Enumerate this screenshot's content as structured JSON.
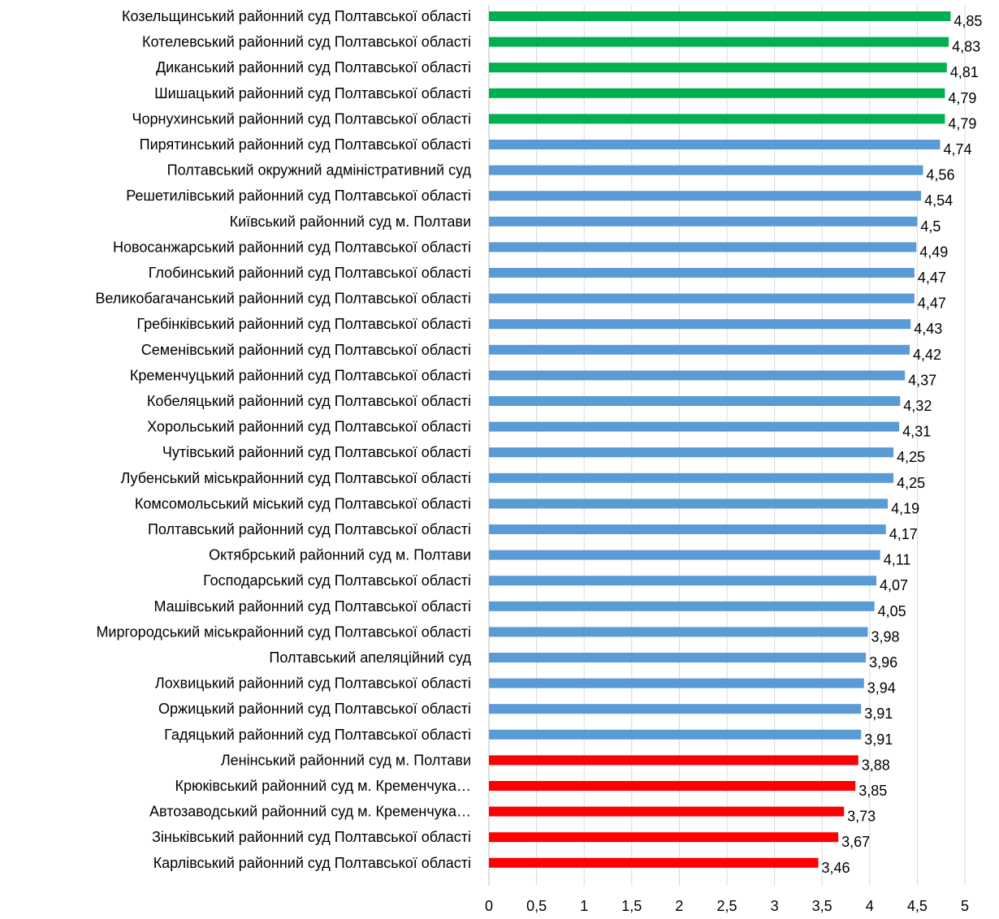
{
  "chart_data": {
    "type": "bar",
    "orientation": "horizontal",
    "categories": [
      "Козельщинський районний суд Полтавської області",
      "Котелевський районний суд Полтавської області",
      "Диканський районний суд Полтавської області",
      "Шишацький районний суд Полтавської області",
      "Чорнухинський районний суд Полтавської області",
      "Пирятинський районний суд Полтавської області",
      "Полтавський окружний адміністративний суд",
      "Решетилівський районний суд Полтавської області",
      "Київський районний суд м. Полтави",
      "Новосанжарський районний суд Полтавської області",
      "Глобинський районний суд Полтавської області",
      "Великобагачанський районний суд Полтавської області",
      "Гребінківський районний суд Полтавської області",
      "Семенівський районний суд Полтавської області",
      "Кременчуцький районний суд Полтавської області",
      "Кобеляцький районний суд Полтавської області",
      "Хорольський районний суд Полтавської області",
      "Чутівський районний суд Полтавської області",
      "Лубенський міськрайонний суд Полтавської області",
      "Комсомольський міський суд Полтавської області",
      "Полтавський районний суд Полтавської області",
      "Октябрський районний суд  м. Полтави",
      "Господарський суд Полтавської області",
      "Машівський районний суд Полтавської області",
      "Миргородський міськрайонний суд Полтавської області",
      "Полтавський апеляційний  суд",
      "Лохвицький районний суд Полтавської області",
      "Оржицький районний суд Полтавської області",
      "Гадяцький районний суд Полтавської області",
      "Ленінський районний суд м. Полтави",
      "Крюківський районний суд  м. Кременчука…",
      "Автозаводський районний суд  м. Кременчука…",
      "Зіньківський районний суд Полтавської області",
      "Карлівський районний суд Полтавської області"
    ],
    "values": [
      4.85,
      4.83,
      4.81,
      4.79,
      4.79,
      4.74,
      4.56,
      4.54,
      4.5,
      4.49,
      4.47,
      4.47,
      4.43,
      4.42,
      4.37,
      4.32,
      4.31,
      4.25,
      4.25,
      4.19,
      4.17,
      4.11,
      4.07,
      4.05,
      3.98,
      3.96,
      3.94,
      3.91,
      3.91,
      3.88,
      3.85,
      3.73,
      3.67,
      3.46
    ],
    "value_labels": [
      "4,85",
      "4,83",
      "4,81",
      "4,79",
      "4,79",
      "4,74",
      "4,56",
      "4,54",
      "4,5",
      "4,49",
      "4,47",
      "4,47",
      "4,43",
      "4,42",
      "4,37",
      "4,32",
      "4,31",
      "4,25",
      "4,25",
      "4,19",
      "4,17",
      "4,11",
      "4,07",
      "4,05",
      "3,98",
      "3,96",
      "3,94",
      "3,91",
      "3,91",
      "3,88",
      "3,85",
      "3,73",
      "3,67",
      "3,46"
    ],
    "bar_groups": [
      "top",
      "top",
      "top",
      "top",
      "top",
      "middle",
      "middle",
      "middle",
      "middle",
      "middle",
      "middle",
      "middle",
      "middle",
      "middle",
      "middle",
      "middle",
      "middle",
      "middle",
      "middle",
      "middle",
      "middle",
      "middle",
      "middle",
      "middle",
      "middle",
      "middle",
      "middle",
      "middle",
      "middle",
      "bottom",
      "bottom",
      "bottom",
      "bottom",
      "bottom"
    ],
    "colors": {
      "top": "#00b050",
      "middle": "#5b9bd5",
      "bottom": "#ff0000",
      "gridline": "#d9d9d9",
      "axis": "#bfbfbf"
    },
    "xlim": [
      0,
      5
    ],
    "x_ticks": [
      0,
      0.5,
      1,
      1.5,
      2,
      2.5,
      3,
      3.5,
      4,
      4.5,
      5
    ],
    "x_tick_labels": [
      "0",
      "0,5",
      "1",
      "1,5",
      "2",
      "2,5",
      "3",
      "3,5",
      "4",
      "4,5",
      "5"
    ],
    "grid": true,
    "legend": "none",
    "title": "",
    "xlabel": "",
    "ylabel": ""
  }
}
